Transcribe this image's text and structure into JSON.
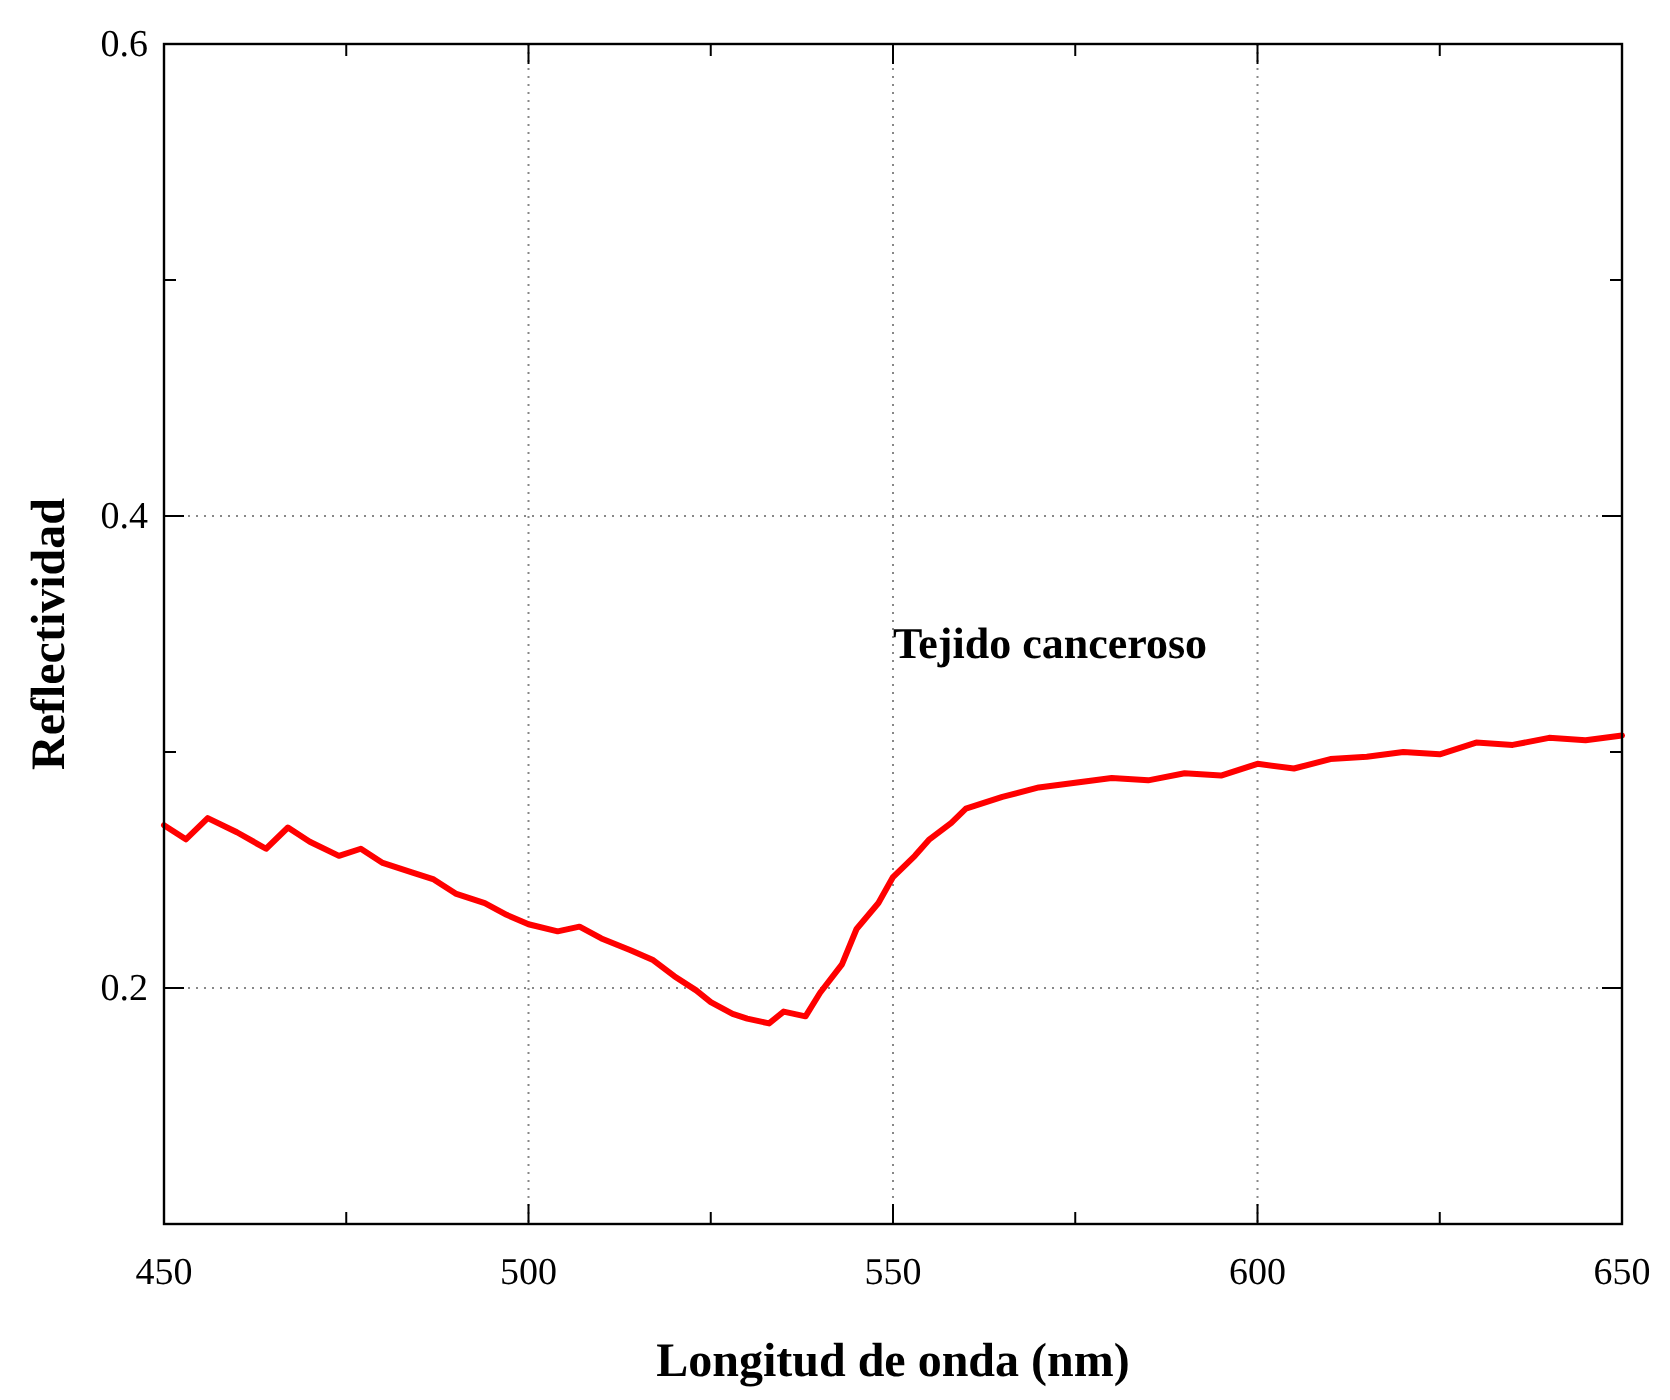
{
  "chart_data": {
    "type": "line",
    "xlabel": "Longitud de onda (nm)",
    "ylabel": "Reflectividad",
    "annotations": [
      "Tejido canceroso"
    ],
    "xlim": [
      450,
      650
    ],
    "ylim": [
      0.1,
      0.6
    ],
    "xticks": [
      450,
      {
        "value": 475,
        "label": null
      },
      500,
      {
        "value": 525,
        "label": null
      },
      550,
      {
        "value": 575,
        "label": null
      },
      600,
      {
        "value": 625,
        "label": null
      },
      650
    ],
    "yticks": [
      {
        "value": 0.1,
        "label": null
      },
      0.2,
      {
        "value": 0.3,
        "label": null
      },
      0.4,
      {
        "value": 0.5,
        "label": null
      },
      0.6
    ],
    "grid": true,
    "marker": "none",
    "line_style": "solid",
    "series": [
      {
        "color": "#ff0000",
        "x": [
          450,
          453,
          456,
          460,
          464,
          467,
          470,
          474,
          477,
          480,
          484,
          487,
          490,
          494,
          497,
          500,
          504,
          507,
          510,
          514,
          517,
          520,
          523,
          525,
          528,
          530,
          533,
          535,
          538,
          540,
          543,
          545,
          548,
          550,
          553,
          555,
          558,
          560,
          565,
          570,
          575,
          580,
          585,
          590,
          595,
          600,
          605,
          610,
          615,
          620,
          625,
          630,
          635,
          640,
          645,
          650
        ],
        "values": [
          0.269,
          0.263,
          0.272,
          0.266,
          0.259,
          0.268,
          0.262,
          0.256,
          0.259,
          0.253,
          0.249,
          0.246,
          0.24,
          0.236,
          0.231,
          0.227,
          0.224,
          0.226,
          0.221,
          0.216,
          0.212,
          0.205,
          0.199,
          0.194,
          0.189,
          0.187,
          0.185,
          0.19,
          0.188,
          0.198,
          0.21,
          0.225,
          0.236,
          0.247,
          0.256,
          0.263,
          0.27,
          0.276,
          0.281,
          0.285,
          0.287,
          0.289,
          0.288,
          0.291,
          0.29,
          0.295,
          0.293,
          0.297,
          0.298,
          0.3,
          0.299,
          0.304,
          0.303,
          0.306,
          0.305,
          0.307
        ]
      }
    ]
  }
}
